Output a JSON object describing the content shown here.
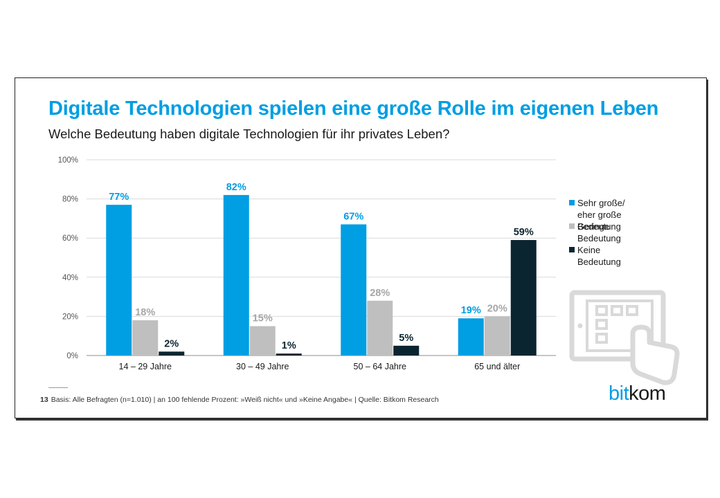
{
  "title": "Digitale Technologien spielen eine große Rolle im eigenen Leben",
  "subtitle": "Welche Bedeutung haben digitale Technologien für ihr privates Leben?",
  "footnote": {
    "page_number": "13",
    "text": "Basis: Alle Befragten (n=1.010) | an 100 fehlende Prozent: »Weiß nicht« und »Keine Angabe« | Quelle: Bitkom Research"
  },
  "logo": {
    "part1": "bit",
    "part2": "kom"
  },
  "icon": "tablet-touch-icon",
  "colors": {
    "blue": "#009ee3",
    "gray": "#bfbfbf",
    "dark": "#0b2530"
  },
  "chart_data": {
    "type": "bar",
    "categories": [
      "14 – 29 Jahre",
      "30 – 49 Jahre",
      "50 – 64 Jahre",
      "65 und älter"
    ],
    "series": [
      {
        "name": "Sehr große/\neher große Bedeutung",
        "values": [
          77,
          82,
          67,
          19
        ],
        "color": "#009ee3",
        "label_color": "#009ee3"
      },
      {
        "name": "Geringe Bedeutung",
        "values": [
          18,
          15,
          28,
          20
        ],
        "color": "#bfbfbf",
        "label_color": "#a6a6a6"
      },
      {
        "name": "Keine Bedeutung",
        "values": [
          2,
          1,
          5,
          59
        ],
        "color": "#0b2530",
        "label_color": "#0b2530"
      }
    ],
    "ylim": [
      0,
      100
    ],
    "yticks": [
      "0%",
      "20%",
      "40%",
      "60%",
      "80%",
      "100%"
    ],
    "value_suffix": "%",
    "grid": true,
    "legend_position": "right"
  }
}
